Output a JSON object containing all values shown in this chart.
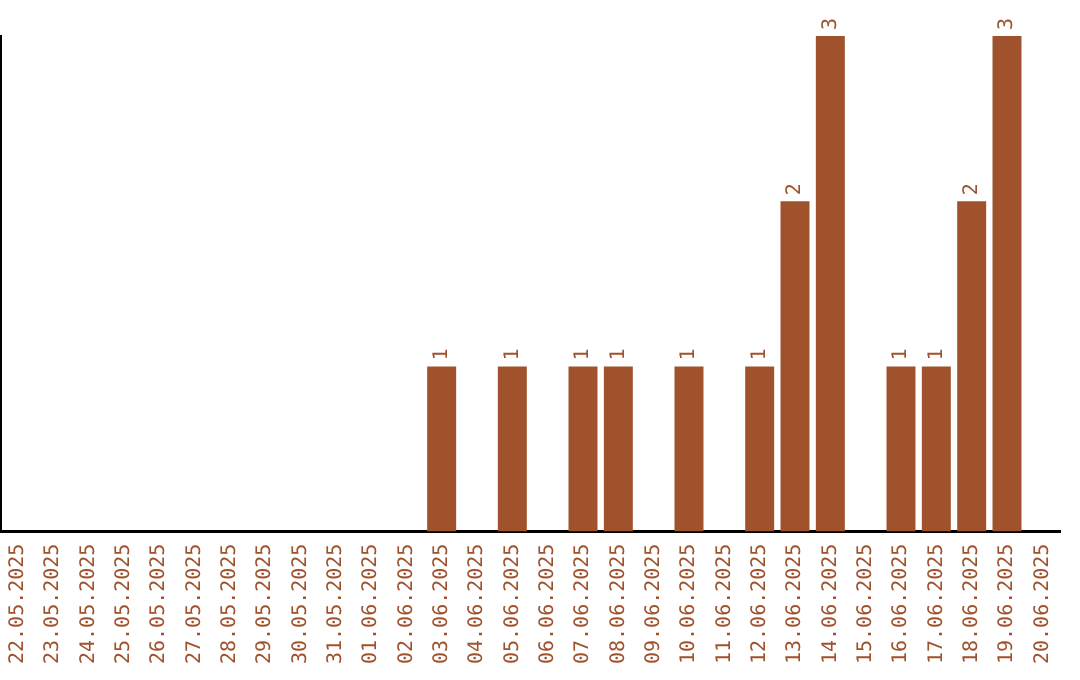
{
  "chart_data": {
    "type": "bar",
    "categories": [
      "22.05.2025",
      "23.05.2025",
      "24.05.2025",
      "25.05.2025",
      "26.05.2025",
      "27.05.2025",
      "28.05.2025",
      "29.05.2025",
      "30.05.2025",
      "31.05.2025",
      "01.06.2025",
      "02.06.2025",
      "03.06.2025",
      "04.06.2025",
      "05.06.2025",
      "06.06.2025",
      "07.06.2025",
      "08.06.2025",
      "09.06.2025",
      "10.06.2025",
      "11.06.2025",
      "12.06.2025",
      "13.06.2025",
      "14.06.2025",
      "15.06.2025",
      "16.06.2025",
      "17.06.2025",
      "18.06.2025",
      "19.06.2025",
      "20.06.2025"
    ],
    "values": [
      null,
      null,
      null,
      null,
      null,
      null,
      null,
      null,
      null,
      null,
      null,
      null,
      1,
      null,
      1,
      null,
      1,
      1,
      null,
      1,
      null,
      1,
      2,
      3,
      null,
      1,
      1,
      2,
      3,
      null
    ],
    "data_labels": true,
    "color": "#a0522d",
    "grid": false,
    "legend": false,
    "tick_labels": "x"
  }
}
